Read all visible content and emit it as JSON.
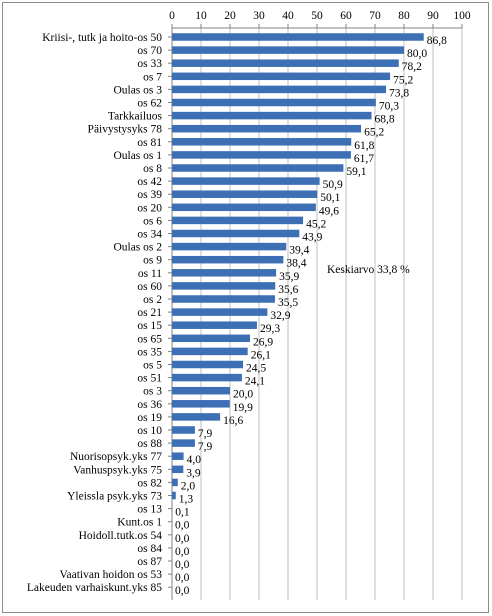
{
  "chart_data": {
    "type": "bar",
    "orientation": "horizontal",
    "xlim": [
      0,
      100
    ],
    "x_ticks": [
      0,
      10,
      20,
      30,
      40,
      50,
      60,
      70,
      80,
      90,
      100
    ],
    "x_tick_labels": [
      "0",
      "10",
      "20",
      "30",
      "40",
      "50",
      "60",
      "70",
      "80",
      "90",
      "100"
    ],
    "x_axis_position": "top",
    "grid": "vertical",
    "bar_color": "#3d6fb5",
    "categories": [
      "Kriisi-, tutk ja hoito-os 50",
      "os 70",
      "os 33",
      "os 7",
      "Oulas os 3",
      "os 62",
      "Tarkkailuos",
      "Päivystysyks 78",
      "os 81",
      "Oulas os 1",
      "os 8",
      "os 42",
      "os 39",
      "os 20",
      "os 6",
      "os 34",
      "Oulas os 2",
      "os 9",
      "os 11",
      "os 60",
      "os 2",
      "os 21",
      "os 15",
      "os 65",
      "os 35",
      "os 5",
      "os 51",
      "os 3",
      "os 36",
      "os 19",
      "os 10",
      "os 88",
      "Nuorisopsyk.yks 77",
      "Vanhuspsyk.yks 75",
      "os 82",
      "Yleissla psyk.yks 73",
      "os 13",
      "Kunt.os 1",
      "Hoidoll.tutk.os 54",
      "os 84",
      "os 87",
      "Vaativan hoidon os 53",
      "Lakeuden varhaiskunt.yks 85"
    ],
    "values": [
      86.8,
      80.0,
      78.2,
      75.2,
      73.8,
      70.3,
      68.8,
      65.2,
      61.8,
      61.7,
      59.1,
      50.9,
      50.1,
      49.6,
      45.2,
      43.9,
      39.4,
      38.4,
      35.9,
      35.6,
      35.5,
      32.9,
      29.3,
      26.9,
      26.1,
      24.5,
      24.1,
      20.0,
      19.9,
      16.6,
      7.9,
      7.9,
      4.0,
      3.9,
      2.0,
      1.3,
      0.1,
      0.0,
      0.0,
      0.0,
      0.0,
      0.0,
      0.0
    ],
    "value_labels": [
      "86,8",
      "80,0",
      "78,2",
      "75,2",
      "73,8",
      "70,3",
      "68,8",
      "65,2",
      "61,8",
      "61,7",
      "59,1",
      "50,9",
      "50,1",
      "49,6",
      "45,2",
      "43,9",
      "39,4",
      "38,4",
      "35,9",
      "35,6",
      "35,5",
      "32,9",
      "29,3",
      "26,9",
      "26,1",
      "24,5",
      "24,1",
      "20,0",
      "19,9",
      "16,6",
      "7,9",
      "7,9",
      "4,0",
      "3,9",
      "2,0",
      "1,3",
      "0,1",
      "0,0",
      "0,0",
      "0,0",
      "0,0",
      "0,0",
      "0,0"
    ],
    "annotation": "Keskiarvo 33,8 %"
  }
}
